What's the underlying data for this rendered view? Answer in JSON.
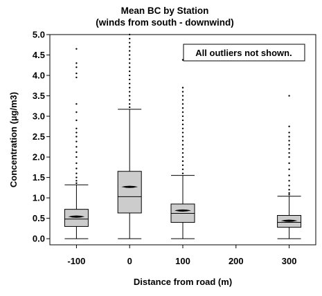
{
  "chart_data": {
    "type": "box",
    "title": "Mean BC by Station",
    "subtitle": "(winds from south - downwind)",
    "xlabel": "Distance from road (m)",
    "ylabel": "Concentration (µg/m3)",
    "annotation": "All outliers not shown.",
    "x_ticks": [
      -100,
      0,
      100,
      200,
      300
    ],
    "x_tick_labels": [
      "-100",
      "0",
      "100",
      "200",
      "300"
    ],
    "xlim": [
      -150,
      350
    ],
    "ylim": [
      -0.15,
      5.0
    ],
    "y_ticks": [
      0.0,
      0.5,
      1.0,
      1.5,
      2.0,
      2.5,
      3.0,
      3.5,
      4.0,
      4.5,
      5.0
    ],
    "y_tick_labels": [
      "0.0",
      "0.5",
      "1.0",
      "1.5",
      "2.0",
      "2.5",
      "3.0",
      "3.5",
      "4.0",
      "4.5",
      "5.0"
    ],
    "grid": false,
    "colors": {
      "box_fill": "#cccccc",
      "stroke": "#000000"
    },
    "boxes": [
      {
        "x": -100,
        "whisker_low": 0.0,
        "q1": 0.3,
        "median": 0.48,
        "mean": 0.54,
        "q3": 0.72,
        "whisker_high": 1.32,
        "outliers": [
          1.36,
          1.42,
          1.5,
          1.6,
          1.72,
          1.85,
          2.0,
          2.12,
          2.25,
          2.38,
          2.5,
          2.6,
          2.7,
          2.9,
          3.1,
          3.3,
          3.95,
          4.05,
          4.2,
          4.3,
          4.65
        ]
      },
      {
        "x": 0,
        "whisker_low": 0.0,
        "q1": 0.63,
        "median": 1.03,
        "mean": 1.27,
        "q3": 1.65,
        "whisker_high": 3.17,
        "outliers": [
          3.22,
          3.3,
          3.4,
          3.5,
          3.6,
          3.7,
          3.8,
          3.9,
          4.0,
          4.1,
          4.2,
          4.3,
          4.4,
          4.5,
          4.6,
          4.7,
          4.8,
          4.9,
          5.0
        ]
      },
      {
        "x": 100,
        "whisker_low": 0.0,
        "q1": 0.4,
        "median": 0.62,
        "mean": 0.69,
        "q3": 0.85,
        "whisker_high": 1.55,
        "outliers": [
          1.6,
          1.7,
          1.8,
          1.9,
          2.0,
          2.1,
          2.2,
          2.3,
          2.4,
          2.5,
          2.6,
          2.7,
          2.8,
          2.9,
          3.0,
          3.1,
          3.2,
          3.3,
          3.4,
          3.5,
          3.6,
          3.7,
          4.38
        ]
      },
      {
        "x": 300,
        "whisker_low": 0.0,
        "q1": 0.28,
        "median": 0.4,
        "mean": 0.44,
        "q3": 0.57,
        "whisker_high": 1.04,
        "outliers": [
          1.08,
          1.12,
          1.2,
          1.3,
          1.42,
          1.55,
          1.7,
          1.85,
          2.0,
          2.1,
          2.2,
          2.3,
          2.4,
          2.5,
          2.6,
          2.75,
          3.5
        ]
      }
    ]
  }
}
